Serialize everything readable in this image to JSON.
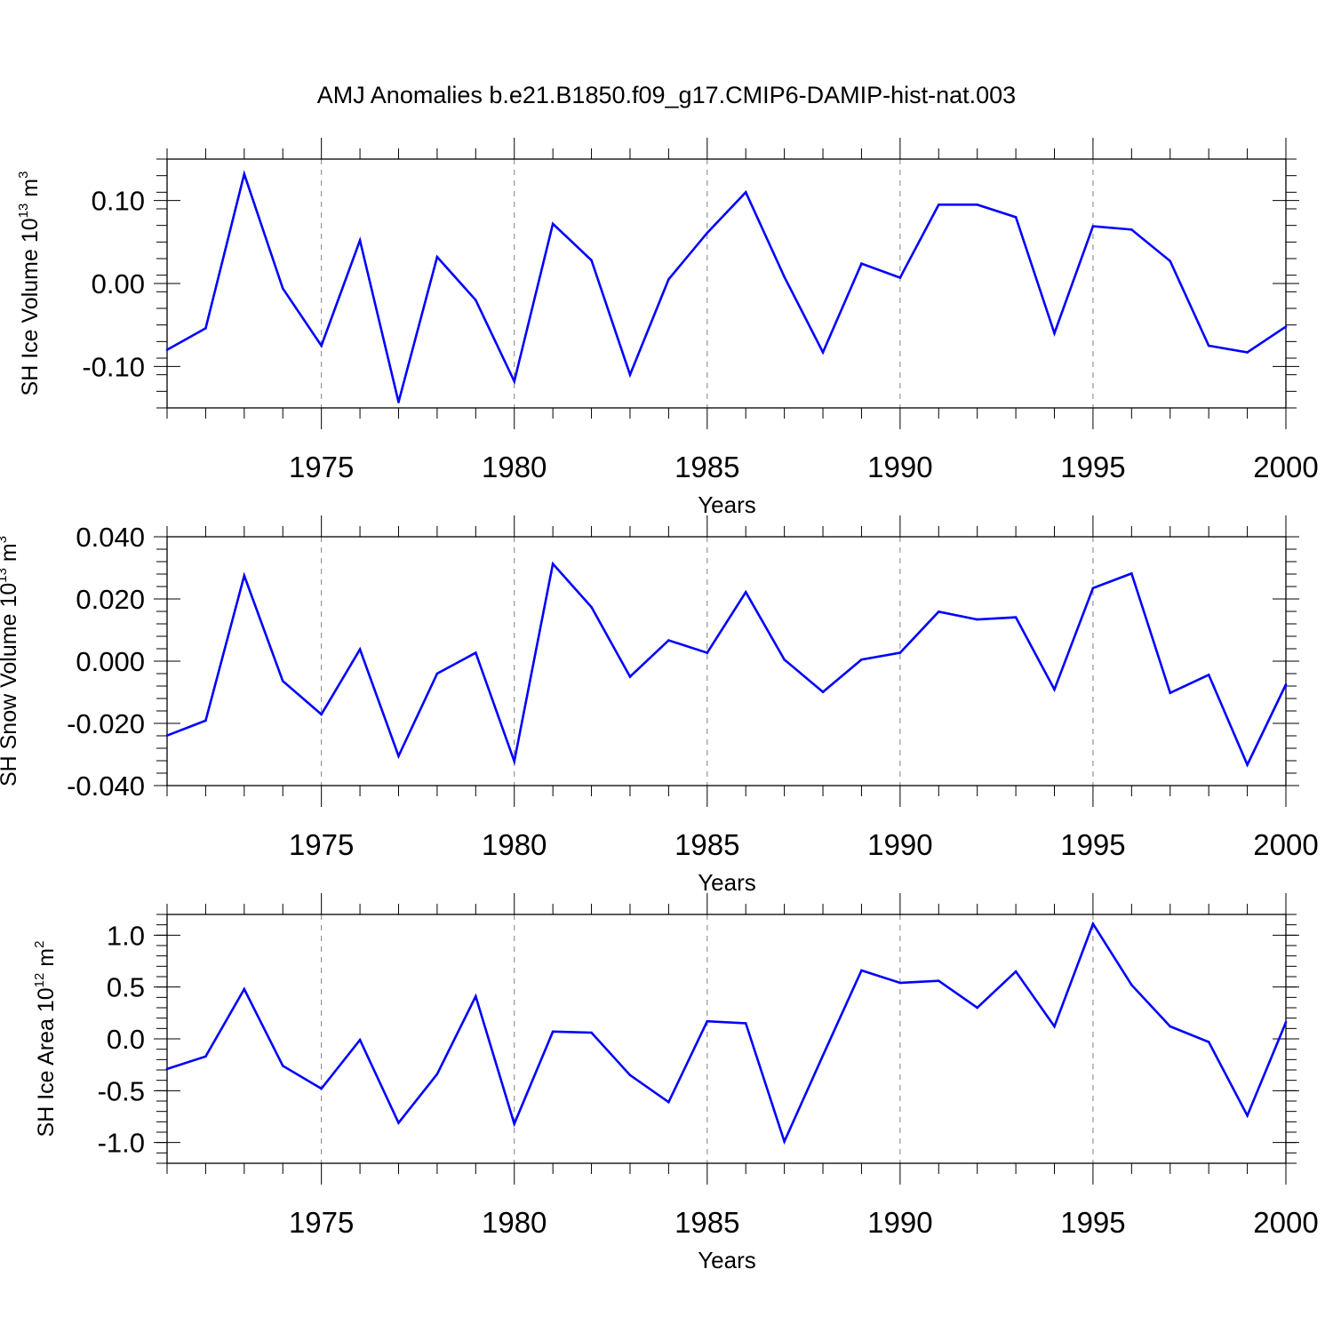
{
  "title": "AMJ Anomalies b.e21.B1850.f09_g17.CMIP6-DAMIP-hist-nat.003",
  "colors": {
    "line": "#0000ff",
    "axis": "#000000",
    "grid": "#808080"
  },
  "chart_data": [
    {
      "type": "line",
      "ylabel": {
        "prefix": "SH Ice Volume 10",
        "exponent": "13",
        "unit": " m",
        "unit_exponent": "3"
      },
      "xlabel": "Years",
      "xlim": [
        1971,
        2000
      ],
      "ylim": [
        -0.15,
        0.15
      ],
      "y_ticks": [
        -0.1,
        0.0,
        0.1
      ],
      "y_tick_labels": [
        "-0.10",
        "0.00",
        "0.10"
      ],
      "y_minor_step": 0.02,
      "x_ticks": [
        1975,
        1980,
        1985,
        1990,
        1995,
        2000
      ],
      "x_tick_labels": [
        "1975",
        "1980",
        "1985",
        "1990",
        "1995",
        "2000"
      ],
      "grid": "vertical dashed at major x ticks",
      "x": [
        1971,
        1972,
        1973,
        1974,
        1975,
        1976,
        1977,
        1978,
        1979,
        1980,
        1981,
        1982,
        1983,
        1984,
        1985,
        1986,
        1987,
        1988,
        1989,
        1990,
        1991,
        1992,
        1993,
        1994,
        1995,
        1996,
        1997,
        1998,
        1999,
        2000
      ],
      "values": [
        -0.08,
        -0.054,
        0.132,
        -0.006,
        -0.075,
        0.052,
        -0.143,
        0.032,
        -0.02,
        -0.118,
        0.072,
        0.028,
        -0.11,
        0.005,
        0.061,
        0.11,
        0.008,
        -0.083,
        0.024,
        0.007,
        0.095,
        0.095,
        0.08,
        -0.06,
        0.069,
        0.065,
        0.027,
        -0.075,
        -0.083,
        -0.052
      ]
    },
    {
      "type": "line",
      "ylabel": {
        "prefix": "SH Snow Volume 10",
        "exponent": "13",
        "unit": " m",
        "unit_exponent": "3"
      },
      "xlabel": "Years",
      "xlim": [
        1971,
        2000
      ],
      "ylim": [
        -0.04,
        0.04
      ],
      "y_ticks": [
        -0.04,
        -0.02,
        0.0,
        0.02,
        0.04
      ],
      "y_tick_labels": [
        "-0.040",
        "-0.020",
        "0.000",
        "0.020",
        "0.040"
      ],
      "y_minor_step": 0.004,
      "x_ticks": [
        1975,
        1980,
        1985,
        1990,
        1995,
        2000
      ],
      "x_tick_labels": [
        "1975",
        "1980",
        "1985",
        "1990",
        "1995",
        "2000"
      ],
      "grid": "vertical dashed at major x ticks",
      "x": [
        1971,
        1972,
        1973,
        1974,
        1975,
        1976,
        1977,
        1978,
        1979,
        1980,
        1981,
        1982,
        1983,
        1984,
        1985,
        1986,
        1987,
        1988,
        1989,
        1990,
        1991,
        1992,
        1993,
        1994,
        1995,
        1996,
        1997,
        1998,
        1999,
        2000
      ],
      "values": [
        -0.0239,
        -0.0191,
        0.0275,
        -0.0064,
        -0.0171,
        0.0038,
        -0.0305,
        -0.004,
        0.0027,
        -0.0322,
        0.0313,
        0.0174,
        -0.005,
        0.0067,
        0.0027,
        0.0222,
        0.0005,
        -0.0099,
        0.0005,
        0.0027,
        0.0159,
        0.0134,
        0.0141,
        -0.0091,
        0.0235,
        0.0282,
        -0.0102,
        -0.0044,
        -0.0333,
        -0.0075
      ]
    },
    {
      "type": "line",
      "ylabel": {
        "prefix": "SH Ice Area 10",
        "exponent": "12",
        "unit": " m",
        "unit_exponent": "2"
      },
      "xlabel": "Years",
      "xlim": [
        1971,
        2000
      ],
      "ylim": [
        -1.2,
        1.2
      ],
      "y_ticks": [
        -1.0,
        -0.5,
        0.0,
        0.5,
        1.0
      ],
      "y_tick_labels": [
        "-1.0",
        "-0.5",
        "0.0",
        "0.5",
        "1.0"
      ],
      "y_minor_step": 0.1,
      "x_ticks": [
        1975,
        1980,
        1985,
        1990,
        1995,
        2000
      ],
      "x_tick_labels": [
        "1975",
        "1980",
        "1985",
        "1990",
        "1995",
        "2000"
      ],
      "grid": "vertical dashed at major x ticks",
      "x": [
        1971,
        1972,
        1973,
        1974,
        1975,
        1976,
        1977,
        1978,
        1979,
        1980,
        1981,
        1982,
        1983,
        1984,
        1985,
        1986,
        1987,
        1988,
        1989,
        1990,
        1991,
        1992,
        1993,
        1994,
        1995,
        1996,
        1997,
        1998,
        1999,
        2000
      ],
      "values": [
        -0.29,
        -0.17,
        0.48,
        -0.26,
        -0.48,
        -0.01,
        -0.81,
        -0.34,
        0.41,
        -0.82,
        0.07,
        0.06,
        -0.35,
        -0.61,
        0.17,
        0.15,
        -0.99,
        -0.16,
        0.66,
        0.54,
        0.56,
        0.3,
        0.65,
        0.12,
        1.11,
        0.52,
        0.12,
        -0.03,
        -0.74,
        0.16
      ]
    }
  ]
}
